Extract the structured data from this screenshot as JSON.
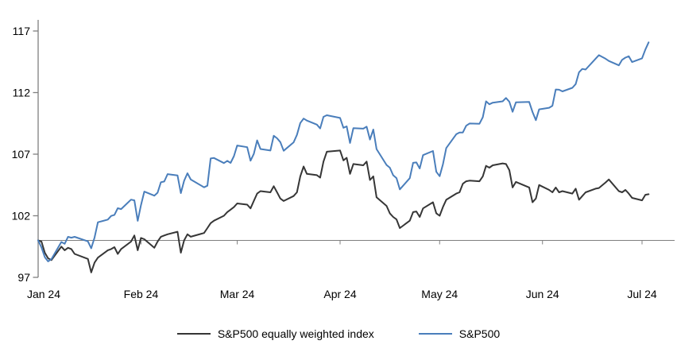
{
  "chart_data": {
    "type": "line",
    "y_axis": {
      "ticks": [
        97,
        102,
        107,
        112,
        117
      ],
      "min": 97,
      "max": 117
    },
    "x_axis": {
      "tick_labels": [
        "Jan 24",
        "Feb 24",
        "Mar 24",
        "Apr 24",
        "May 24",
        "Jun 24",
        "Jul 24"
      ],
      "month_day_offsets": [
        0,
        31,
        60,
        91,
        121,
        152,
        182
      ]
    },
    "baseline_value": 100,
    "grid": false,
    "legend_position": "bottom-center",
    "days": [
      0,
      1,
      2,
      3,
      4,
      7,
      8,
      9,
      10,
      11,
      15,
      16,
      17,
      18,
      21,
      22,
      23,
      24,
      25,
      28,
      29,
      30,
      31,
      32,
      35,
      36,
      37,
      38,
      39,
      42,
      43,
      44,
      45,
      46,
      50,
      51,
      52,
      53,
      56,
      57,
      58,
      59,
      60,
      63,
      64,
      65,
      66,
      67,
      70,
      71,
      72,
      73,
      74,
      77,
      78,
      79,
      80,
      81,
      84,
      85,
      86,
      87,
      91,
      92,
      93,
      94,
      95,
      98,
      99,
      100,
      101,
      102,
      105,
      106,
      107,
      108,
      109,
      112,
      113,
      114,
      115,
      116,
      119,
      120,
      121,
      122,
      123,
      126,
      127,
      128,
      129,
      130,
      133,
      134,
      135,
      136,
      137,
      140,
      141,
      142,
      143,
      144,
      148,
      149,
      150,
      151,
      154,
      155,
      156,
      157,
      158,
      161,
      162,
      163,
      164,
      165,
      168,
      169,
      171,
      172,
      175,
      176,
      177,
      178,
      179,
      182,
      183,
      184
    ],
    "series": [
      {
        "name": "S&P500 equally weighted index",
        "color": "#363636",
        "values": [
          100,
          99.9,
          99.0,
          98.55,
          98.4,
          99.5,
          99.2,
          99.4,
          99.3,
          98.9,
          98.5,
          97.4,
          98.2,
          98.6,
          99.2,
          99.3,
          99.45,
          98.9,
          99.3,
          99.9,
          100.4,
          99.2,
          100.2,
          100.1,
          99.4,
          99.9,
          100.3,
          100.4,
          100.5,
          100.7,
          99.0,
          100.0,
          100.5,
          100.3,
          100.6,
          101.0,
          101.4,
          101.6,
          102.0,
          102.3,
          102.5,
          102.7,
          103.0,
          102.9,
          102.6,
          103.2,
          103.8,
          104.0,
          103.9,
          104.4,
          103.9,
          103.4,
          103.2,
          103.6,
          103.9,
          105.2,
          106.0,
          105.4,
          105.3,
          105.1,
          106.4,
          107.2,
          107.3,
          106.5,
          106.7,
          105.4,
          106.2,
          106.1,
          106.4,
          104.9,
          105.2,
          103.5,
          102.8,
          102.2,
          101.9,
          101.7,
          101.0,
          101.6,
          102.3,
          102.35,
          101.9,
          102.6,
          103.1,
          102.2,
          102.0,
          102.7,
          103.3,
          103.8,
          103.9,
          104.6,
          104.8,
          104.85,
          104.8,
          105.2,
          106.05,
          105.9,
          106.1,
          106.25,
          106.2,
          105.7,
          104.3,
          104.75,
          104.3,
          103.1,
          103.4,
          104.5,
          104.1,
          103.9,
          104.3,
          103.9,
          104.0,
          103.8,
          104.2,
          103.3,
          103.6,
          103.9,
          104.2,
          104.25,
          104.7,
          104.95,
          104.0,
          103.9,
          104.1,
          103.8,
          103.45,
          103.25,
          103.7,
          103.75
        ]
      },
      {
        "name": "S&P500",
        "color": "#4a7ebb",
        "values": [
          100,
          99.43,
          98.64,
          98.3,
          98.48,
          99.87,
          99.72,
          100.29,
          100.22,
          100.29,
          99.92,
          99.36,
          100.23,
          101.47,
          101.69,
          101.99,
          102.07,
          102.61,
          102.54,
          103.31,
          103.25,
          101.59,
          102.86,
          103.96,
          103.63,
          103.87,
          104.72,
          104.78,
          105.38,
          105.28,
          103.84,
          104.84,
          105.45,
          104.94,
          104.31,
          104.44,
          106.65,
          106.69,
          106.28,
          106.46,
          106.29,
          106.84,
          107.7,
          107.57,
          106.47,
          107.02,
          108.12,
          107.42,
          107.3,
          108.5,
          108.29,
          107.98,
          107.28,
          107.96,
          108.57,
          109.53,
          109.89,
          109.73,
          109.4,
          109.09,
          110.03,
          110.16,
          109.94,
          109.14,
          109.26,
          107.91,
          109.11,
          109.07,
          109.23,
          108.19,
          109.0,
          107.41,
          106.12,
          105.9,
          105.29,
          105.06,
          104.14,
          105.05,
          106.3,
          106.33,
          105.84,
          106.92,
          107.26,
          105.57,
          105.21,
          106.17,
          107.5,
          108.62,
          108.76,
          108.76,
          109.31,
          109.49,
          109.47,
          110.0,
          111.29,
          111.05,
          111.18,
          111.29,
          111.56,
          111.26,
          110.44,
          111.21,
          111.24,
          110.42,
          109.76,
          110.64,
          110.77,
          110.93,
          112.25,
          112.23,
          112.1,
          112.39,
          112.69,
          113.65,
          113.92,
          113.87,
          114.75,
          115.04,
          114.75,
          114.57,
          114.21,
          114.66,
          114.84,
          114.95,
          114.48,
          114.78,
          115.5,
          116.08
        ]
      }
    ]
  },
  "colors": {
    "axis": "#7f7f7f",
    "label_text": "#000000",
    "background": "#ffffff"
  }
}
